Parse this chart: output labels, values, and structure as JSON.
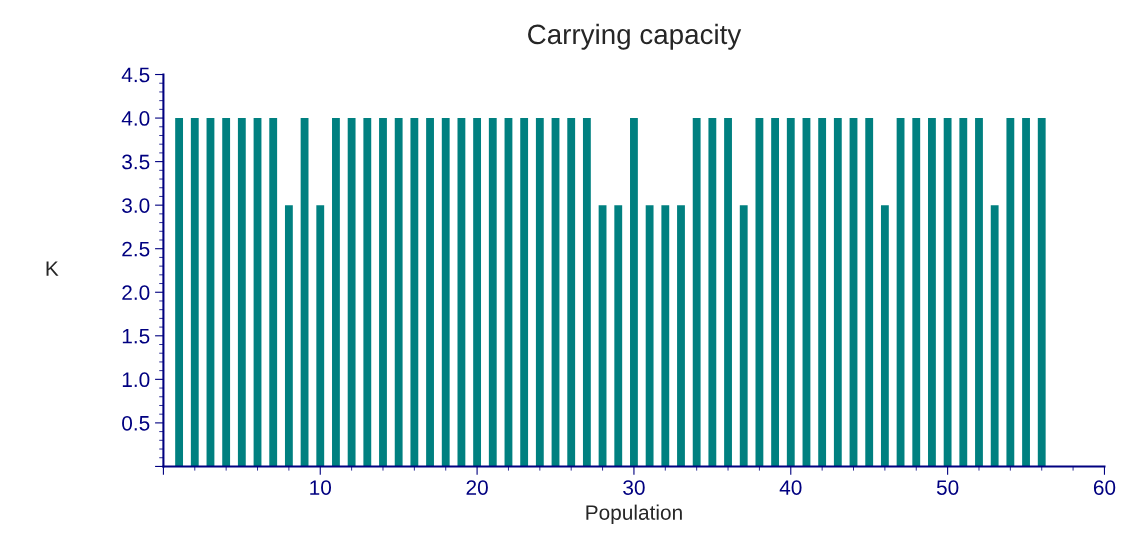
{
  "chart_data": {
    "type": "bar",
    "title": "Carrying capacity",
    "xlabel": "Population",
    "ylabel": "K",
    "x": [
      1,
      2,
      3,
      4,
      5,
      6,
      7,
      8,
      9,
      10,
      11,
      12,
      13,
      14,
      15,
      16,
      17,
      18,
      19,
      20,
      21,
      22,
      23,
      24,
      25,
      26,
      27,
      28,
      29,
      30,
      31,
      32,
      33,
      34,
      35,
      36,
      37,
      38,
      39,
      40,
      41,
      42,
      43,
      44,
      45,
      46,
      47,
      48,
      49,
      50,
      51,
      52,
      53,
      54,
      55,
      56
    ],
    "values": [
      4,
      4,
      4,
      4,
      4,
      4,
      4,
      3,
      4,
      3,
      4,
      4,
      4,
      4,
      4,
      4,
      4,
      4,
      4,
      4,
      4,
      4,
      4,
      4,
      4,
      4,
      4,
      3,
      3,
      4,
      3,
      3,
      3,
      4,
      4,
      4,
      3,
      4,
      4,
      4,
      4,
      4,
      4,
      4,
      4,
      3,
      4,
      4,
      4,
      4,
      4,
      4,
      3,
      4,
      4,
      4
    ],
    "color": "#008080",
    "xlim": [
      0,
      60
    ],
    "xticks": [
      {
        "value": 0,
        "label": null
      },
      10,
      20,
      30,
      40,
      50,
      60
    ],
    "ylim": [
      0,
      4.5
    ],
    "yticks": [
      {
        "value": 0,
        "label": null
      },
      {
        "value": 0.5,
        "label": "0.5"
      },
      {
        "value": 1.0,
        "label": "1.0"
      },
      {
        "value": 1.5,
        "label": "1.5"
      },
      {
        "value": 2.0,
        "label": "2.0"
      },
      {
        "value": 2.5,
        "label": "2.5"
      },
      {
        "value": 3.0,
        "label": "3.0"
      },
      {
        "value": 3.5,
        "label": "3.5"
      },
      {
        "value": 4.0,
        "label": "4.0"
      },
      {
        "value": 4.5,
        "label": "4.5"
      }
    ],
    "grid": false,
    "legend": false
  }
}
